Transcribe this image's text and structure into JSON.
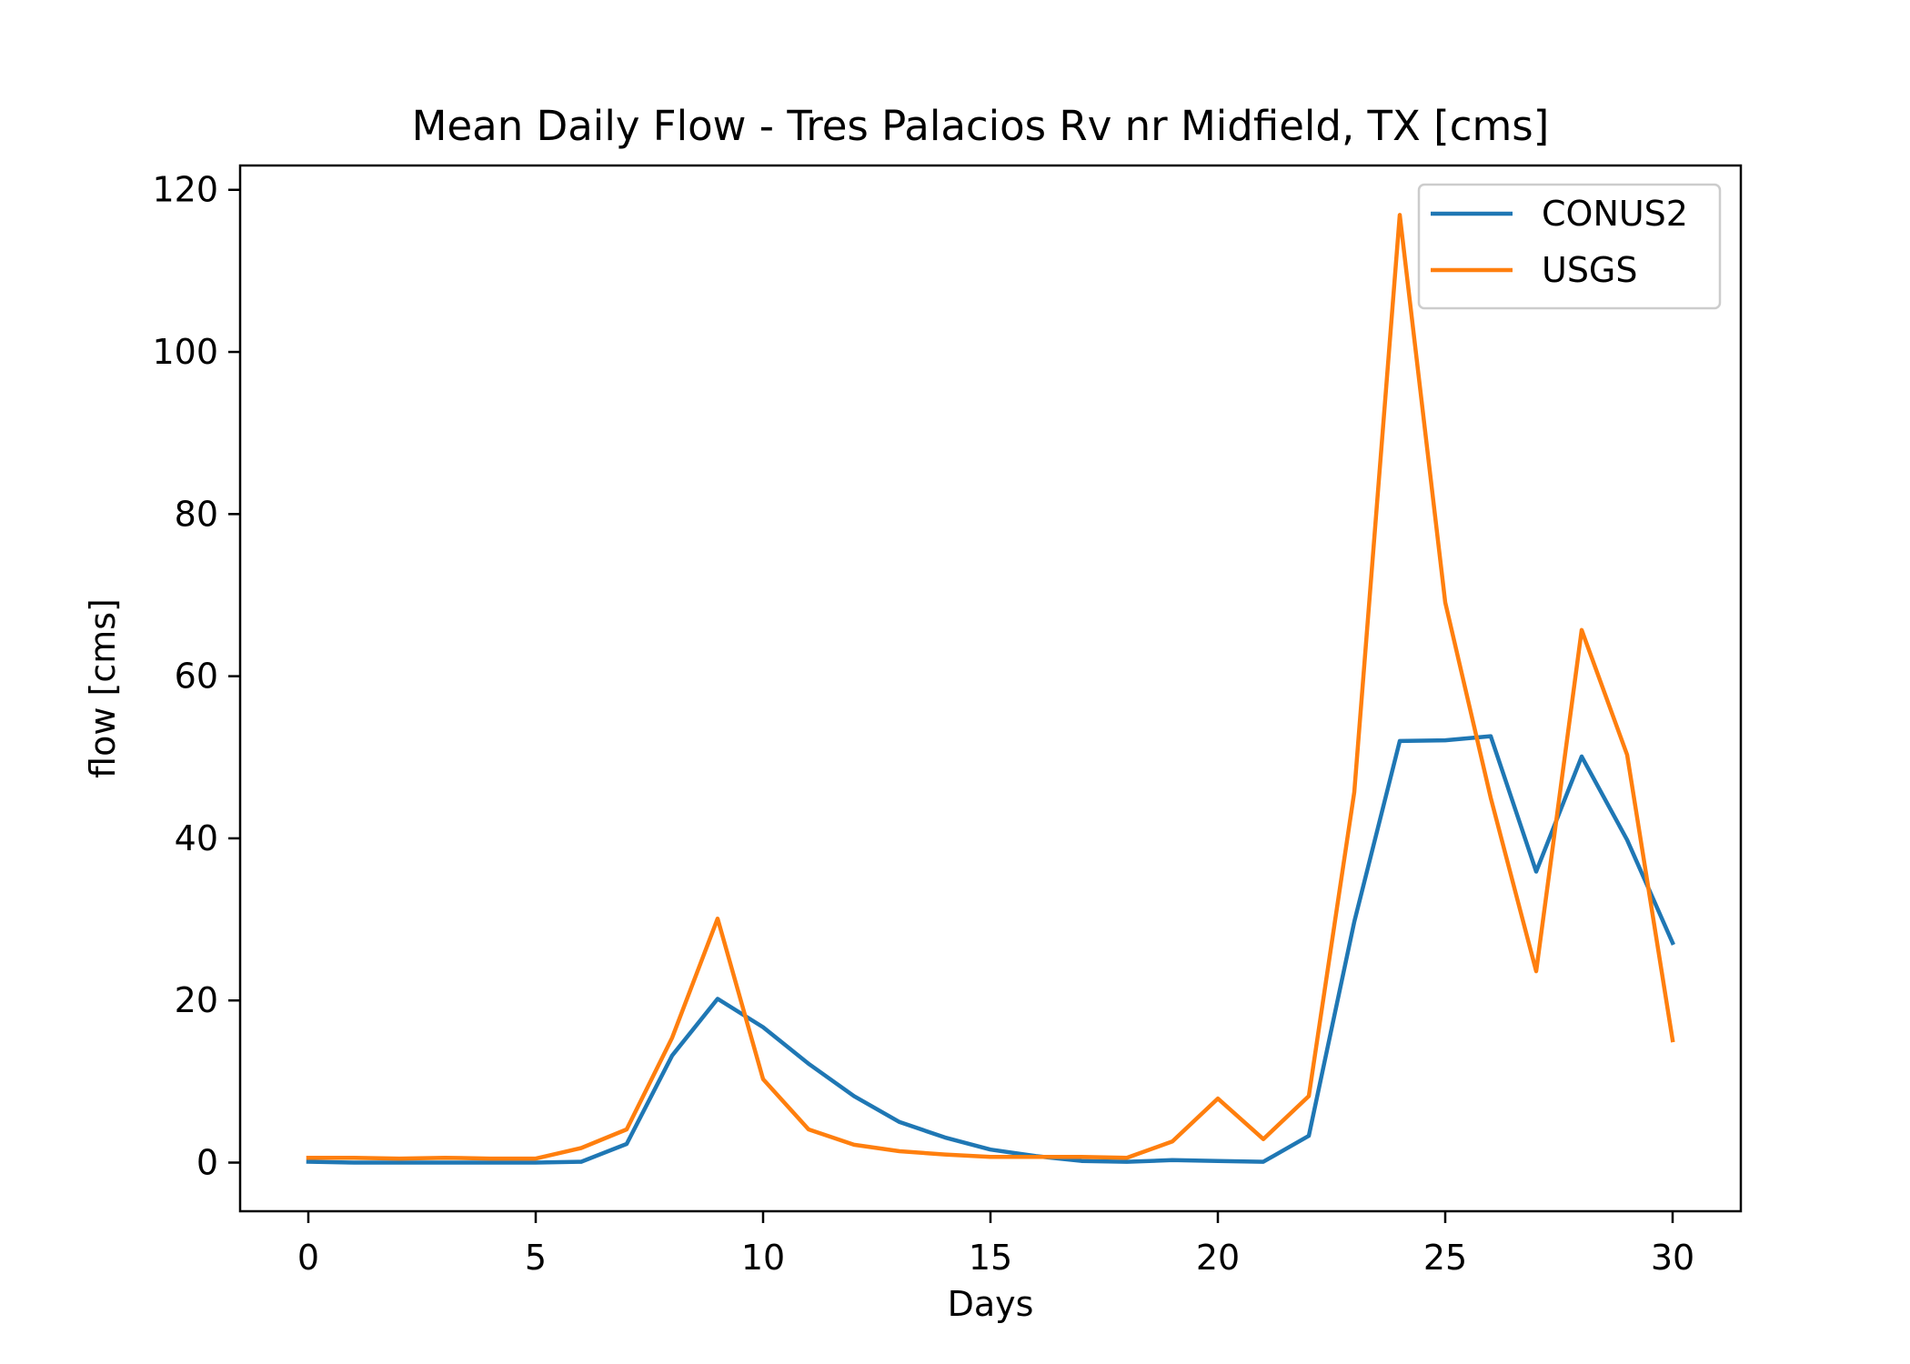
{
  "chart_data": {
    "type": "line",
    "title": "Mean Daily Flow - Tres Palacios Rv nr Midfield, TX [cms]",
    "xlabel": "Days",
    "ylabel": "flow [cms]",
    "xlim": [
      -1.5,
      31.5
    ],
    "ylim": [
      -6,
      123
    ],
    "xticks": [
      0,
      5,
      10,
      15,
      20,
      25,
      30
    ],
    "yticks": [
      0,
      20,
      40,
      60,
      80,
      100,
      120
    ],
    "grid": false,
    "legend_position": "top-right",
    "x": [
      0,
      1,
      2,
      3,
      4,
      5,
      6,
      7,
      8,
      9,
      10,
      11,
      12,
      13,
      14,
      15,
      16,
      17,
      18,
      19,
      20,
      21,
      22,
      23,
      24,
      25,
      26,
      27,
      28,
      29,
      30
    ],
    "series": [
      {
        "name": "CONUS2",
        "color": "#1f77b4",
        "values": [
          0.1,
          0.0,
          0.0,
          0.0,
          0.0,
          0.0,
          0.1,
          2.3,
          13.2,
          20.2,
          16.7,
          12.2,
          8.2,
          5.0,
          3.1,
          1.6,
          0.8,
          0.2,
          0.1,
          0.3,
          0.2,
          0.1,
          3.3,
          29.7,
          52.0,
          52.1,
          52.6,
          35.9,
          50.1,
          39.8,
          27.1
        ]
      },
      {
        "name": "USGS",
        "color": "#ff7f0e",
        "values": [
          0.6,
          0.6,
          0.5,
          0.6,
          0.5,
          0.5,
          1.8,
          4.1,
          15.4,
          30.1,
          10.3,
          4.1,
          2.2,
          1.4,
          1.0,
          0.7,
          0.7,
          0.7,
          0.6,
          2.6,
          7.9,
          2.9,
          8.2,
          45.7,
          116.9,
          69.1,
          45.0,
          23.6,
          65.7,
          50.3,
          15.1
        ]
      }
    ]
  }
}
